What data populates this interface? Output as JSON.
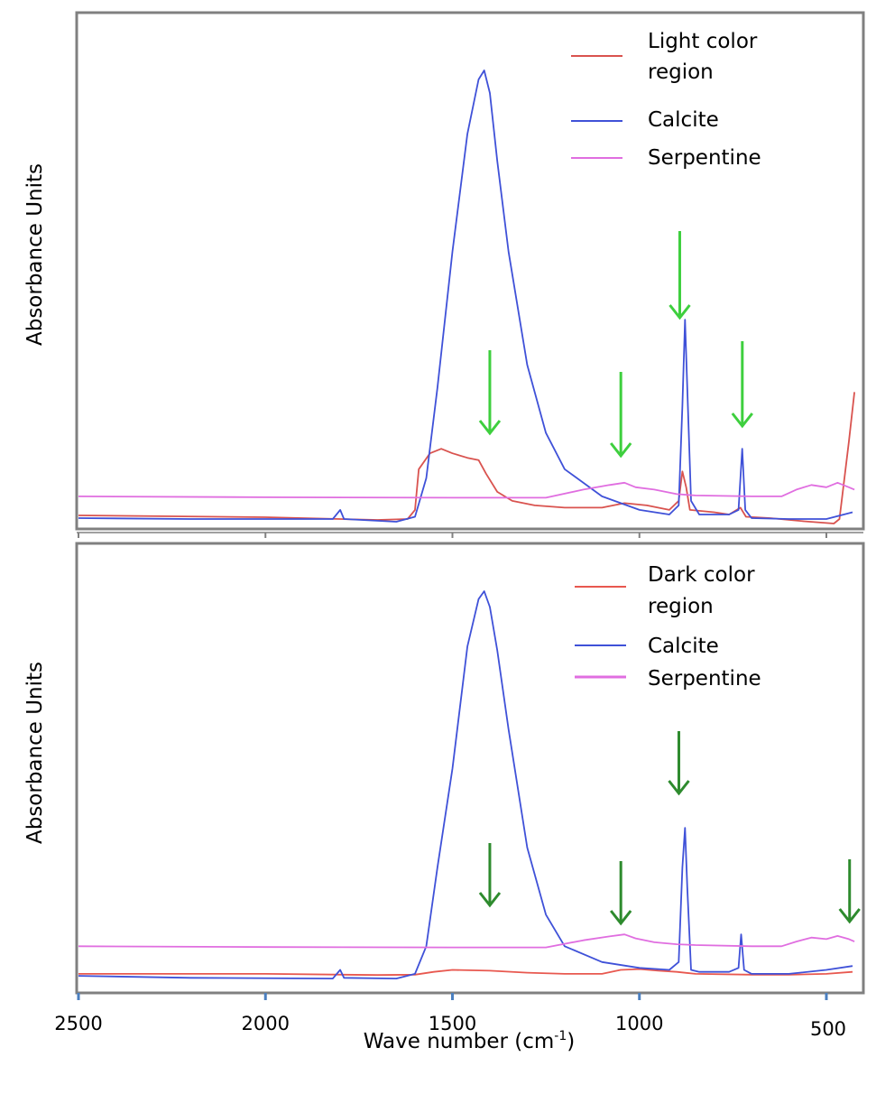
{
  "chart_data": [
    {
      "type": "line",
      "ylabel": "Absorbance Units",
      "xlabel": "",
      "xlim": [
        2500,
        400
      ],
      "ylim": [
        0,
        1.0
      ],
      "x_reversed": true,
      "grid": false,
      "legend_position": "top-right",
      "series": [
        {
          "name": "Light color region",
          "color": "#d9534f",
          "points": [
            [
              2500,
              0.018
            ],
            [
              2000,
              0.014
            ],
            [
              1700,
              0.008
            ],
            [
              1620,
              0.01
            ],
            [
              1600,
              0.03
            ],
            [
              1590,
              0.12
            ],
            [
              1560,
              0.155
            ],
            [
              1530,
              0.165
            ],
            [
              1500,
              0.155
            ],
            [
              1460,
              0.145
            ],
            [
              1430,
              0.14
            ],
            [
              1410,
              0.11
            ],
            [
              1380,
              0.07
            ],
            [
              1340,
              0.05
            ],
            [
              1280,
              0.04
            ],
            [
              1200,
              0.035
            ],
            [
              1100,
              0.035
            ],
            [
              1040,
              0.045
            ],
            [
              980,
              0.04
            ],
            [
              920,
              0.03
            ],
            [
              895,
              0.05
            ],
            [
              885,
              0.115
            ],
            [
              875,
              0.08
            ],
            [
              865,
              0.03
            ],
            [
              800,
              0.025
            ],
            [
              760,
              0.02
            ],
            [
              730,
              0.035
            ],
            [
              715,
              0.015
            ],
            [
              650,
              0.012
            ],
            [
              560,
              0.005
            ],
            [
              480,
              0.0
            ],
            [
              465,
              0.01
            ],
            [
              440,
              0.18
            ],
            [
              425,
              0.29
            ]
          ]
        },
        {
          "name": "Calcite",
          "color": "#3f51d8",
          "points": [
            [
              2500,
              0.012
            ],
            [
              2200,
              0.01
            ],
            [
              1820,
              0.01
            ],
            [
              1800,
              0.03
            ],
            [
              1790,
              0.01
            ],
            [
              1650,
              0.004
            ],
            [
              1600,
              0.015
            ],
            [
              1570,
              0.1
            ],
            [
              1540,
              0.3
            ],
            [
              1500,
              0.6
            ],
            [
              1460,
              0.86
            ],
            [
              1430,
              0.98
            ],
            [
              1415,
              1.0
            ],
            [
              1400,
              0.95
            ],
            [
              1380,
              0.8
            ],
            [
              1350,
              0.6
            ],
            [
              1300,
              0.35
            ],
            [
              1250,
              0.2
            ],
            [
              1200,
              0.12
            ],
            [
              1100,
              0.06
            ],
            [
              1000,
              0.03
            ],
            [
              920,
              0.02
            ],
            [
              895,
              0.04
            ],
            [
              885,
              0.26
            ],
            [
              878,
              0.45
            ],
            [
              872,
              0.3
            ],
            [
              862,
              0.05
            ],
            [
              840,
              0.02
            ],
            [
              760,
              0.02
            ],
            [
              735,
              0.03
            ],
            [
              725,
              0.165
            ],
            [
              717,
              0.03
            ],
            [
              700,
              0.012
            ],
            [
              600,
              0.01
            ],
            [
              500,
              0.01
            ],
            [
              430,
              0.025
            ]
          ]
        },
        {
          "name": "Serpentine",
          "color": "#e06ee0",
          "points": [
            [
              2500,
              0.06
            ],
            [
              2000,
              0.058
            ],
            [
              1500,
              0.057
            ],
            [
              1250,
              0.057
            ],
            [
              1150,
              0.075
            ],
            [
              1080,
              0.085
            ],
            [
              1040,
              0.09
            ],
            [
              1010,
              0.08
            ],
            [
              960,
              0.075
            ],
            [
              900,
              0.065
            ],
            [
              850,
              0.062
            ],
            [
              700,
              0.06
            ],
            [
              620,
              0.06
            ],
            [
              580,
              0.075
            ],
            [
              540,
              0.085
            ],
            [
              500,
              0.08
            ],
            [
              470,
              0.09
            ],
            [
              440,
              0.08
            ],
            [
              425,
              0.075
            ]
          ]
        }
      ]
    },
    {
      "type": "line",
      "ylabel": "Absorbance Units",
      "xlabel": "Wave number (cm-1)",
      "xlim": [
        2500,
        400
      ],
      "ylim": [
        0,
        1.0
      ],
      "x_reversed": true,
      "grid": false,
      "legend_position": "top-right",
      "tick_labels": [
        "2500",
        "2000",
        "1500",
        "1000",
        "500"
      ],
      "tick_values": [
        2500,
        2000,
        1500,
        1000,
        500
      ],
      "series": [
        {
          "name": "Dark color region",
          "color": "#e8584f",
          "points": [
            [
              2500,
              0.03
            ],
            [
              2000,
              0.03
            ],
            [
              1700,
              0.027
            ],
            [
              1600,
              0.028
            ],
            [
              1550,
              0.035
            ],
            [
              1500,
              0.04
            ],
            [
              1400,
              0.038
            ],
            [
              1300,
              0.033
            ],
            [
              1200,
              0.03
            ],
            [
              1100,
              0.03
            ],
            [
              1050,
              0.04
            ],
            [
              1000,
              0.042
            ],
            [
              950,
              0.038
            ],
            [
              900,
              0.035
            ],
            [
              850,
              0.03
            ],
            [
              700,
              0.028
            ],
            [
              600,
              0.028
            ],
            [
              500,
              0.03
            ],
            [
              430,
              0.035
            ]
          ]
        },
        {
          "name": "Calcite",
          "color": "#3f51d8",
          "points": [
            [
              2500,
              0.025
            ],
            [
              2200,
              0.02
            ],
            [
              1820,
              0.018
            ],
            [
              1800,
              0.04
            ],
            [
              1790,
              0.02
            ],
            [
              1650,
              0.018
            ],
            [
              1600,
              0.03
            ],
            [
              1570,
              0.1
            ],
            [
              1540,
              0.3
            ],
            [
              1500,
              0.55
            ],
            [
              1460,
              0.86
            ],
            [
              1430,
              0.98
            ],
            [
              1415,
              1.0
            ],
            [
              1400,
              0.96
            ],
            [
              1380,
              0.85
            ],
            [
              1350,
              0.65
            ],
            [
              1300,
              0.35
            ],
            [
              1250,
              0.18
            ],
            [
              1200,
              0.1
            ],
            [
              1100,
              0.06
            ],
            [
              1000,
              0.045
            ],
            [
              920,
              0.04
            ],
            [
              895,
              0.06
            ],
            [
              885,
              0.3
            ],
            [
              878,
              0.4
            ],
            [
              872,
              0.25
            ],
            [
              862,
              0.04
            ],
            [
              840,
              0.035
            ],
            [
              760,
              0.035
            ],
            [
              735,
              0.045
            ],
            [
              728,
              0.13
            ],
            [
              720,
              0.04
            ],
            [
              700,
              0.03
            ],
            [
              600,
              0.03
            ],
            [
              500,
              0.04
            ],
            [
              430,
              0.05
            ]
          ]
        },
        {
          "name": "Serpentine",
          "color": "#e06ee0",
          "points": [
            [
              2500,
              0.1
            ],
            [
              2000,
              0.098
            ],
            [
              1500,
              0.097
            ],
            [
              1250,
              0.097
            ],
            [
              1150,
              0.115
            ],
            [
              1080,
              0.125
            ],
            [
              1040,
              0.13
            ],
            [
              1010,
              0.12
            ],
            [
              960,
              0.11
            ],
            [
              900,
              0.105
            ],
            [
              850,
              0.103
            ],
            [
              700,
              0.1
            ],
            [
              620,
              0.1
            ],
            [
              580,
              0.112
            ],
            [
              540,
              0.122
            ],
            [
              500,
              0.118
            ],
            [
              470,
              0.126
            ],
            [
              440,
              0.118
            ],
            [
              425,
              0.112
            ]
          ]
        }
      ]
    }
  ],
  "legend_top": {
    "items": [
      {
        "label": "Light color region",
        "line1": "Light color",
        "line2": "region",
        "color": "#d9534f"
      },
      {
        "label": "Calcite",
        "color": "#3f51d8"
      },
      {
        "label": "Serpentine",
        "color": "#e06ee0"
      }
    ]
  },
  "legend_bottom": {
    "items": [
      {
        "label": "Dark color region",
        "line1": "Dark color",
        "line2": "region",
        "color": "#e8584f"
      },
      {
        "label": "Calcite",
        "color": "#3f51d8"
      },
      {
        "label": "Serpentine",
        "color": "#e06ee0"
      }
    ]
  },
  "axis": {
    "ylabel_top": "Absorbance Units",
    "ylabel_bottom": "Absorbance Units",
    "xlabel_main": "Wave number (cm",
    "xlabel_sup": "-1",
    "xlabel_end": ")"
  },
  "arrows_top": {
    "color": "#3ecf3e",
    "positions": [
      1400,
      1040,
      880,
      720
    ]
  },
  "arrows_bottom": {
    "color": "#2e8b2e",
    "positions": [
      1400,
      1040,
      880,
      450
    ]
  }
}
